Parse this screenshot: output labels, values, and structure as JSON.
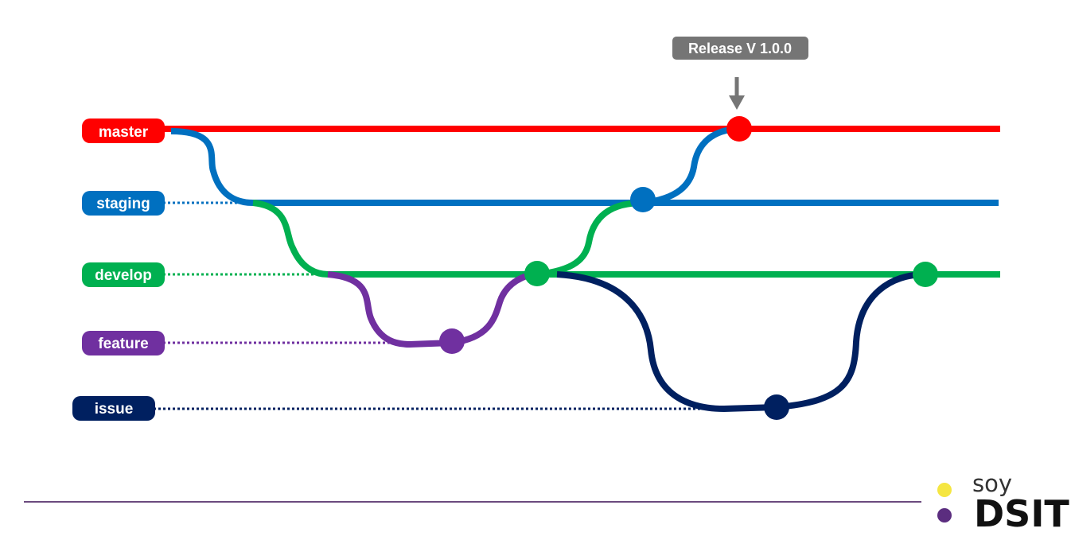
{
  "branches": [
    {
      "name": "master",
      "color": "#ff0000"
    },
    {
      "name": "staging",
      "color": "#0070c0"
    },
    {
      "name": "develop",
      "color": "#00b050"
    },
    {
      "name": "feature",
      "color": "#7030a0"
    },
    {
      "name": "issue",
      "color": "#002060"
    }
  ],
  "release": {
    "label": "Release V 1.0.0",
    "color": "#757575"
  },
  "logo": {
    "soy": "soy",
    "dsit": "DSIT",
    "dot_colors": [
      "#f5e642",
      "#5b2d7f"
    ]
  },
  "footer_line_color": "#6b4a7e"
}
